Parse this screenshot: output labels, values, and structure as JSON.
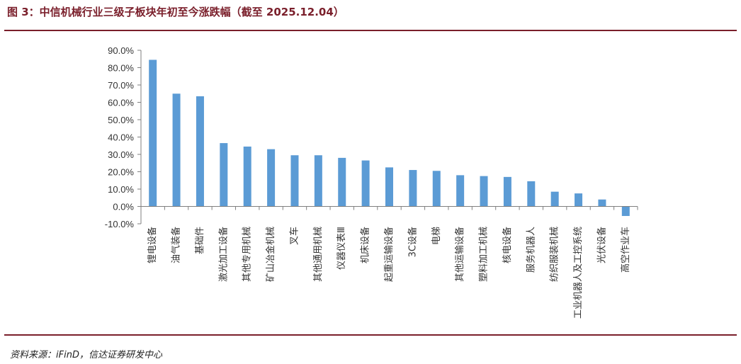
{
  "header": {
    "title": "图 3：中信机械行业三级子板块年初至今涨跌幅（截至 2025.12.04）"
  },
  "footer": {
    "source": "资料来源：iFinD，信达证券研发中心"
  },
  "colors": {
    "bar": "#5b9bd5",
    "axis": "#7f7f7f",
    "accent": "#7a1f2b"
  },
  "chart_data": {
    "type": "bar",
    "title": "",
    "xlabel": "",
    "ylabel": "",
    "ylim": [
      -10,
      90
    ],
    "y_ticks": [
      90,
      80,
      70,
      60,
      50,
      40,
      30,
      20,
      10,
      0,
      -10
    ],
    "y_tick_labels": [
      "90.0%",
      "80.0%",
      "70.0%",
      "60.0%",
      "50.0%",
      "40.0%",
      "30.0%",
      "20.0%",
      "10.0%",
      "0.0%",
      "-10.0%"
    ],
    "grid": false,
    "legend": "none",
    "categories": [
      "锂电设备",
      "油气装备",
      "基础件",
      "激光加工设备",
      "其他专用机械",
      "矿山冶金机械",
      "叉车",
      "其他通用机械",
      "仪器仪表Ⅲ",
      "机床设备",
      "起重运输设备",
      "3C设备",
      "电梯",
      "其他运输设备",
      "塑料加工机械",
      "核电设备",
      "服务机器人",
      "纺织服装机械",
      "工业机器人及工控系统",
      "光伏设备",
      "高空作业车"
    ],
    "values": [
      84.5,
      65.0,
      63.5,
      36.5,
      34.5,
      33.0,
      29.5,
      29.5,
      28.0,
      26.5,
      22.5,
      21.0,
      20.5,
      18.0,
      17.5,
      17.0,
      14.5,
      8.5,
      7.5,
      4.0,
      -5.5
    ]
  }
}
